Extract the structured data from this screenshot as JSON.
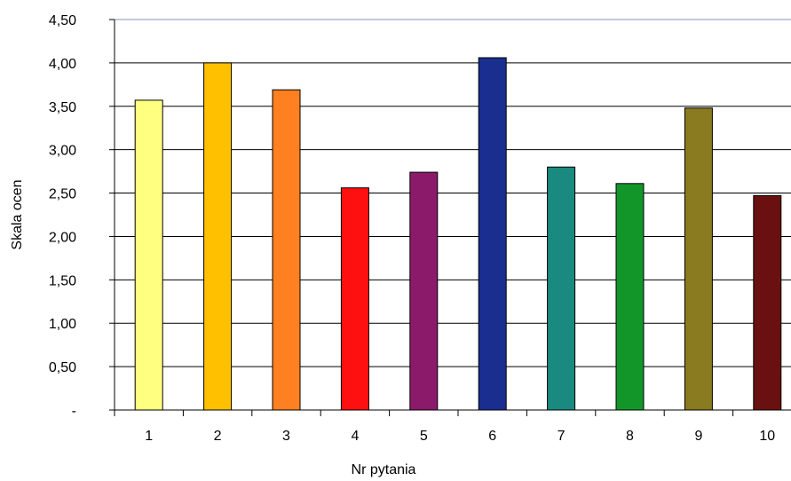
{
  "chart_data": {
    "type": "bar",
    "xlabel": "Nr pytania",
    "ylabel": "Skala ocen",
    "categories": [
      "1",
      "2",
      "3",
      "4",
      "5",
      "6",
      "7",
      "8",
      "9",
      "10"
    ],
    "values": [
      3.57,
      4.0,
      3.69,
      2.56,
      2.74,
      4.06,
      2.8,
      2.61,
      3.48,
      2.47
    ],
    "colors": [
      "#ffff80",
      "#ffc000",
      "#ff8020",
      "#ff1010",
      "#8b1a6b",
      "#1a2e8f",
      "#1a8a80",
      "#12962a",
      "#8a7a20",
      "#6a1010"
    ],
    "ylim": [
      0,
      4.5
    ],
    "yticks": [
      {
        "value": 0,
        "label": "-"
      },
      {
        "value": 0.5,
        "label": "0,50"
      },
      {
        "value": 1.0,
        "label": "1,00"
      },
      {
        "value": 1.5,
        "label": "1,50"
      },
      {
        "value": 2.0,
        "label": "2,00"
      },
      {
        "value": 2.5,
        "label": "2,50"
      },
      {
        "value": 3.0,
        "label": "3,00"
      },
      {
        "value": 3.5,
        "label": "3,50"
      },
      {
        "value": 4.0,
        "label": "4,00"
      },
      {
        "value": 4.5,
        "label": "4,50"
      }
    ],
    "grid": true,
    "legend": "none"
  }
}
